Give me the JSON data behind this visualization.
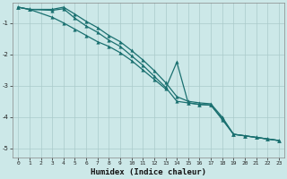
{
  "xlabel": "Humidex (Indice chaleur)",
  "bg_color": "#cce8e8",
  "grid_color": "#aacaca",
  "line_color": "#1a7070",
  "xlim": [
    -0.5,
    23.5
  ],
  "ylim": [
    -5.3,
    -0.35
  ],
  "yticks": [
    -5,
    -4,
    -3,
    -2,
    -1
  ],
  "xticks": [
    0,
    1,
    2,
    3,
    4,
    5,
    6,
    7,
    8,
    9,
    10,
    11,
    12,
    13,
    14,
    15,
    16,
    17,
    18,
    19,
    20,
    21,
    22,
    23
  ],
  "line1_x": [
    0,
    1,
    3,
    4,
    5,
    6,
    7,
    8,
    9,
    10,
    11,
    12,
    13,
    14,
    15,
    16,
    17,
    18,
    19,
    20,
    21,
    22,
    23
  ],
  "line1_y": [
    -0.5,
    -0.57,
    -0.6,
    -0.55,
    -0.85,
    -1.1,
    -1.3,
    -1.55,
    -1.75,
    -2.05,
    -2.35,
    -2.7,
    -3.05,
    -3.5,
    -3.55,
    -3.6,
    -3.62,
    -4.05,
    -4.55,
    -4.6,
    -4.65,
    -4.7,
    -4.75
  ],
  "line2_x": [
    0,
    1,
    3,
    4,
    5,
    6,
    7,
    8,
    9,
    10,
    11,
    12,
    13,
    14,
    15,
    16,
    17,
    18,
    19,
    20,
    21,
    22,
    23
  ],
  "line2_y": [
    -0.5,
    -0.57,
    -0.82,
    -1.0,
    -1.2,
    -1.4,
    -1.6,
    -1.75,
    -1.95,
    -2.2,
    -2.5,
    -2.8,
    -3.1,
    -2.25,
    -3.55,
    -3.6,
    -3.62,
    -4.08,
    -4.55,
    -4.6,
    -4.65,
    -4.7,
    -4.75
  ],
  "line3_x": [
    0,
    1,
    3,
    4,
    5,
    6,
    7,
    8,
    9,
    10,
    11,
    12,
    13,
    14,
    15,
    16,
    17,
    18,
    19,
    20,
    21,
    22,
    23
  ],
  "line3_y": [
    -0.5,
    -0.57,
    -0.57,
    -0.5,
    -0.72,
    -0.95,
    -1.15,
    -1.4,
    -1.6,
    -1.88,
    -2.18,
    -2.52,
    -2.9,
    -3.35,
    -3.5,
    -3.55,
    -3.58,
    -4.0,
    -4.55,
    -4.6,
    -4.65,
    -4.7,
    -4.75
  ]
}
